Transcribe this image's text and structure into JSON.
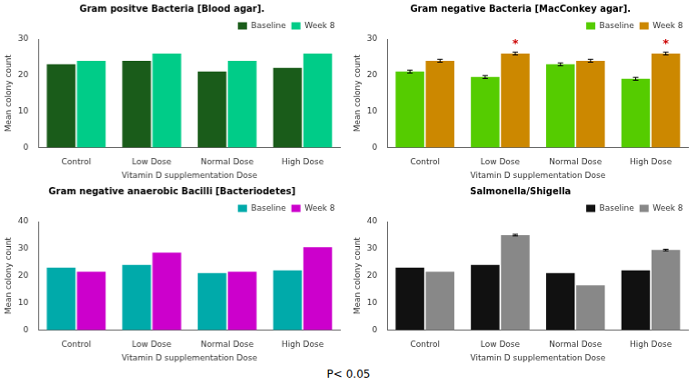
{
  "annotation": "P< 0.05",
  "chart_data": [
    {
      "type": "bar",
      "title": "Gram positve Bacteria [Blood agar].",
      "categories": [
        "Control",
        "Low Dose",
        "Normal Dose",
        "High Dose"
      ],
      "series": [
        {
          "name": "Baseline",
          "color": "#1a5c1a",
          "values": [
            23,
            24,
            21,
            22
          ]
        },
        {
          "name": "Week 8",
          "color": "#00cc88",
          "values": [
            24,
            26,
            24,
            26
          ]
        }
      ],
      "xlabel": "Vitamin D supplementation Dose",
      "ylabel": "Mean colony count",
      "ylim": [
        0,
        30
      ],
      "yticks": [
        0,
        10,
        20,
        30
      ],
      "legend": "upper right",
      "grid": false
    },
    {
      "type": "bar",
      "title": "Gram negative Bacteria [MacConkey agar].",
      "categories": [
        "Control",
        "Low Dose",
        "Normal Dose",
        "High Dose"
      ],
      "series": [
        {
          "name": "Baseline",
          "color": "#55cc00",
          "values": [
            21,
            19.5,
            23,
            19
          ],
          "errors": [
            0.4,
            0.4,
            0.4,
            0.4
          ]
        },
        {
          "name": "Week 8",
          "color": "#cc8800",
          "values": [
            24,
            26,
            24,
            26
          ],
          "errors": [
            0.4,
            0.4,
            0.4,
            0.4
          ]
        }
      ],
      "annotations": [
        {
          "text": "*",
          "category": "Low Dose",
          "series": "Week 8"
        },
        {
          "text": "*",
          "category": "High Dose",
          "series": "Week 8"
        }
      ],
      "xlabel": "Vitamin D supplementation Dose",
      "ylabel": "Mean colony count",
      "ylim": [
        0,
        30
      ],
      "yticks": [
        0,
        10,
        20,
        30
      ],
      "legend": "upper right",
      "grid": false
    },
    {
      "type": "bar",
      "title": "Gram negative anaerobic Bacilli [Bacteriodetes]",
      "categories": [
        "Control",
        "Low Dose",
        "Normal Dose",
        "High Dose"
      ],
      "series": [
        {
          "name": "Baseline",
          "color": "#00aaaa",
          "values": [
            23,
            24,
            21,
            22
          ]
        },
        {
          "name": "Week 8",
          "color": "#cc00cc",
          "values": [
            21.5,
            28.5,
            21.5,
            30.5
          ]
        }
      ],
      "xlabel": "Vitamin D supplementation Dose",
      "ylabel": "Mean colony count",
      "ylim": [
        0,
        40
      ],
      "yticks": [
        0,
        10,
        20,
        30,
        40
      ],
      "legend": "upper right",
      "grid": false
    },
    {
      "type": "bar",
      "title": "Salmonella/Shigella",
      "categories": [
        "Control",
        "Low Dose",
        "Normal Dose",
        "High Dose"
      ],
      "series": [
        {
          "name": "Baseline",
          "color": "#111111",
          "values": [
            23,
            24,
            21,
            22
          ]
        },
        {
          "name": "Week 8",
          "color": "#888888",
          "values": [
            21.5,
            35,
            16.5,
            29.5
          ],
          "errors": [
            0,
            0.3,
            0,
            0.3
          ]
        }
      ],
      "xlabel": "Vitamin D supplementation Dose",
      "ylabel": "Mean colony count",
      "ylim": [
        0,
        40
      ],
      "yticks": [
        0,
        10,
        20,
        30,
        40
      ],
      "legend": "upper right",
      "grid": false
    }
  ]
}
